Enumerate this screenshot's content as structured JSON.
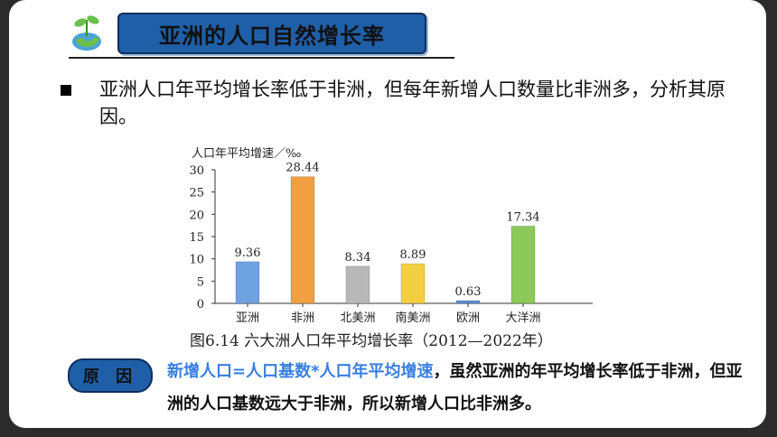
{
  "title": "亚洲的人口自然增长率",
  "question": "亚洲人口年平均增长率低于非洲，但每年新增人口数量比非洲多，分析其原因。",
  "chart_data": {
    "type": "bar",
    "ylabel": "人口年平均增速／‰",
    "ylim": [
      0,
      30
    ],
    "yticks": [
      0,
      5,
      10,
      15,
      20,
      25,
      30
    ],
    "categories": [
      "亚洲",
      "非洲",
      "北美洲",
      "南美洲",
      "欧洲",
      "大洋洲"
    ],
    "values": [
      9.36,
      28.44,
      8.34,
      8.89,
      0.63,
      17.34
    ],
    "value_labels": [
      "9.36",
      "28.44",
      "8.34",
      "8.89",
      "0.63",
      "17.34"
    ],
    "colors": [
      "#6fa3e0",
      "#f0a040",
      "#b8b8b8",
      "#f3d040",
      "#5b8fd8",
      "#8cc85a"
    ],
    "caption": "图6.14  六大洲人口年平均增长率（2012—2022年）"
  },
  "reason_label": "原 因",
  "answer": {
    "highlight": "新增人口=人口基数*人口年平均增速",
    "rest": "，虽然亚洲的年平均增长率低于非洲，但亚洲的人口基数远大于非洲，所以新增人口比非洲多。"
  }
}
